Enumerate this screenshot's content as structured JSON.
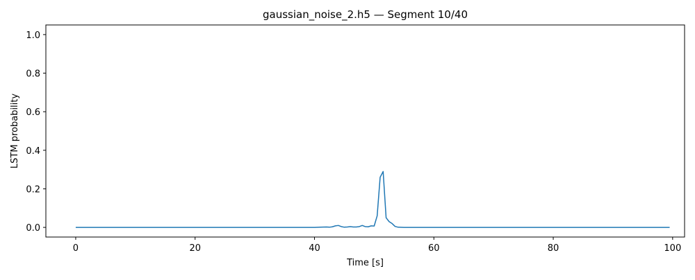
{
  "chart_data": {
    "type": "line",
    "title": "gaussian_noise_2.h5 — Segment 10/40",
    "xlabel": "Time [s]",
    "ylabel": "LSTM probability",
    "xlim": [
      -5,
      102
    ],
    "ylim": [
      -0.05,
      1.05
    ],
    "xticks": [
      0,
      20,
      40,
      60,
      80,
      100
    ],
    "xtick_labels": [
      "0",
      "20",
      "40",
      "60",
      "80",
      "100"
    ],
    "yticks": [
      0.0,
      0.2,
      0.4,
      0.6,
      0.8,
      1.0
    ],
    "ytick_labels": [
      "0.0",
      "0.2",
      "0.4",
      "0.6",
      "0.8",
      "1.0"
    ],
    "grid": false,
    "line_color": "#1f77b4",
    "series": [
      {
        "x": [
          0,
          10,
          20,
          30,
          40,
          41,
          42,
          42.5,
          43,
          43.5,
          44,
          44.5,
          45,
          45.5,
          46,
          46.5,
          47,
          47.5,
          48,
          48.5,
          49,
          49.5,
          50,
          50.5,
          51,
          51.5,
          52,
          52.5,
          53,
          53.5,
          54,
          55,
          60,
          70,
          80,
          90,
          99.5
        ],
        "y": [
          0,
          0,
          0,
          0,
          0,
          0.001,
          0.002,
          0.001,
          0.003,
          0.008,
          0.01,
          0.004,
          0.001,
          0.002,
          0.004,
          0.002,
          0.002,
          0.004,
          0.01,
          0.004,
          0.003,
          0.008,
          0.007,
          0.06,
          0.26,
          0.29,
          0.05,
          0.03,
          0.02,
          0.005,
          0.001,
          0,
          0,
          0,
          0,
          0,
          0
        ]
      }
    ]
  }
}
